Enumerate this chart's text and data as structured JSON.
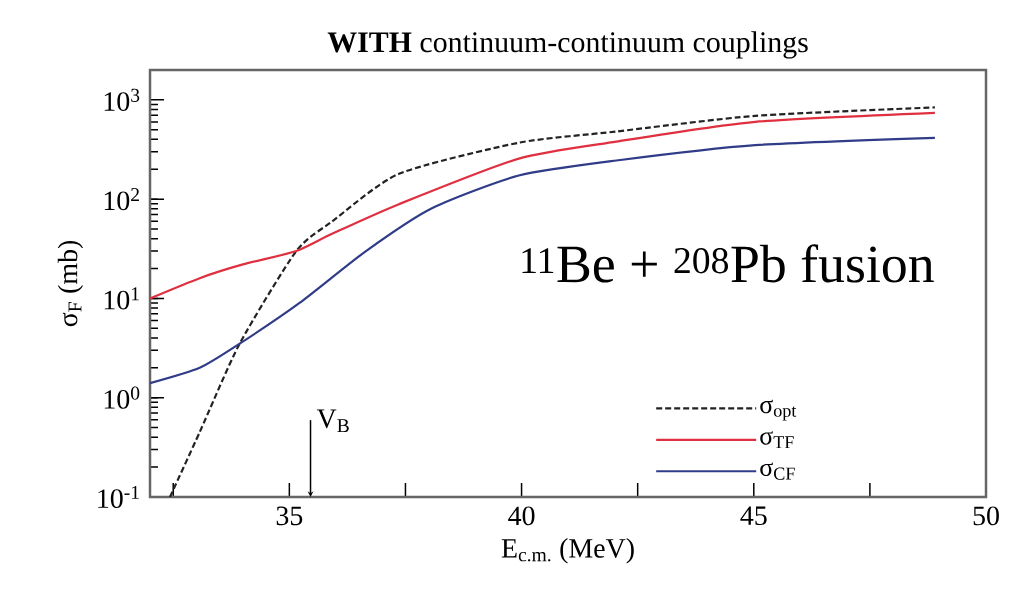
{
  "chart_data": {
    "type": "line",
    "title": "**WITH** continuum-continuum couplings",
    "xlabel": "E$_{c.m.}$  (MeV)",
    "ylabel": "σ$_{F}$ (mb)",
    "log": "y",
    "xlim": [
      32,
      50
    ],
    "ylim": [
      0.1,
      2000
    ],
    "xticks": [
      {
        "value": 32.5,
        "label": null
      },
      35,
      {
        "value": 37.5,
        "label": null
      },
      40,
      {
        "value": 42.5,
        "label": null
      },
      45,
      {
        "value": 47.5,
        "label": null
      },
      50
    ],
    "yticks": [
      {
        "value": 0.1,
        "label": "10$^{-1}$"
      },
      {
        "value": 1,
        "label": "10$^{0}$"
      },
      {
        "value": 10,
        "label": "10$^{1}$"
      },
      {
        "value": 100,
        "label": "10$^{2}$"
      },
      {
        "value": 1000,
        "label": "10$^{3}$"
      }
    ],
    "legend": "bottom right",
    "grid": false,
    "annotations": [
      "$^{11}$Be + $^{208}$Pb fusion",
      "V$_{B}$"
    ],
    "series": [
      {
        "name": "σ$_{opt}$",
        "color": "#222222",
        "line_style": "dashed",
        "x": [
          32.43,
          33.07,
          33.93,
          35.15,
          35.93,
          37.36,
          39.94,
          42.04,
          45.03,
          48.9
        ],
        "values": [
          0.1,
          0.45,
          3.5,
          30,
          60,
          180,
          370,
          480,
          690,
          840
        ]
      },
      {
        "name": "σ$_{TF}$",
        "color": "#e03040",
        "line_style": "solid",
        "x": [
          32.0,
          33.07,
          34.0,
          35.15,
          35.93,
          37.36,
          39.94,
          42.04,
          45.03,
          48.9
        ],
        "values": [
          10,
          16,
          22,
          30,
          45,
          89,
          256,
          380,
          600,
          740
        ]
      },
      {
        "name": "σ$_{CF}$",
        "color": "#303c88",
        "line_style": "solid",
        "x": [
          32.0,
          33.07,
          33.93,
          35.22,
          36.65,
          38.07,
          39.94,
          42.04,
          45.03,
          48.9
        ],
        "values": [
          1.4,
          2.0,
          3.5,
          9,
          30,
          81,
          173,
          245,
          350,
          415
        ]
      }
    ]
  }
}
